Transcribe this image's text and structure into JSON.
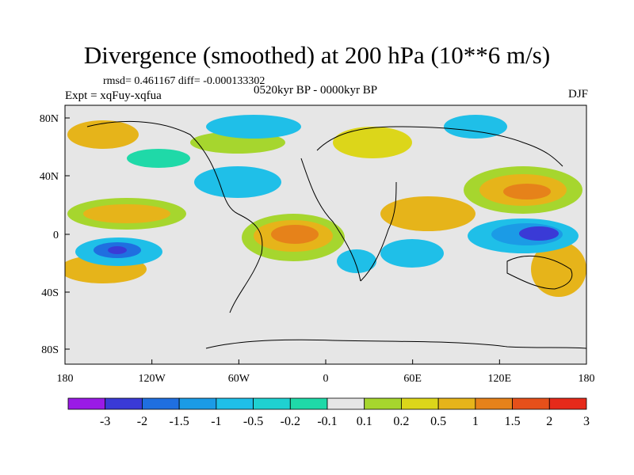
{
  "title": "Divergence (smoothed) at 200 hPa (10**6 m/s)",
  "stats": "rmsd= 0.461167 diff= -0.000133302",
  "experiment": "Expt = xqFuy-xqfua",
  "period": "0520kyr BP - 0000kyr BP",
  "season": "DJF",
  "axes": {
    "x_ticks": [
      "180",
      "120W",
      "60W",
      "0",
      "60E",
      "120E",
      "180"
    ],
    "y_ticks": [
      "80N",
      "40N",
      "0",
      "40S",
      "80S"
    ]
  },
  "colorbar": {
    "labels": [
      "-3",
      "-2",
      "-1.5",
      "-1",
      "-0.5",
      "-0.2",
      "-0.1",
      "0.1",
      "0.2",
      "0.5",
      "1",
      "1.5",
      "2",
      "3"
    ],
    "colors": [
      "#9a1ae6",
      "#3a3ad6",
      "#1f6fe0",
      "#1b9be6",
      "#1fbfe8",
      "#1fd1d1",
      "#1fd9a8",
      "#e6e6e6",
      "#a6d62e",
      "#dcd61a",
      "#e6b41a",
      "#e6821a",
      "#e6501a",
      "#e62a1a"
    ]
  },
  "colors": {
    "land_outline": "#000000",
    "neutral": "#e6e6e6"
  }
}
